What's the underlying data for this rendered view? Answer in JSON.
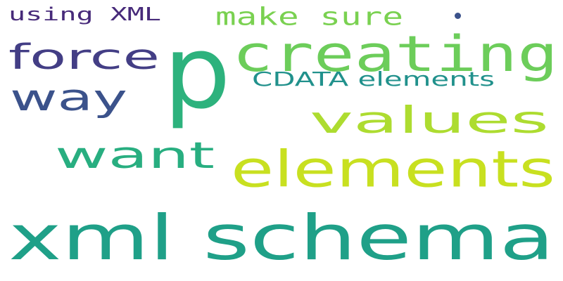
{
  "words": [
    {
      "id": "using-xml",
      "text": "using XML",
      "color": "#472a7a"
    },
    {
      "id": "make-sure",
      "text": "make sure",
      "color": "#7ad151"
    },
    {
      "id": "p",
      "text": "p",
      "color": "#2db27d"
    },
    {
      "id": "creating",
      "text": "creating",
      "color": "#6ccd5a"
    },
    {
      "id": "force",
      "text": "force",
      "color": "#433e85"
    },
    {
      "id": "cdata-elements",
      "text": "CDATA elements",
      "color": "#21918c"
    },
    {
      "id": "way",
      "text": "way",
      "color": "#3b528b"
    },
    {
      "id": "values",
      "text": "values",
      "color": "#addc30"
    },
    {
      "id": "want",
      "text": "want",
      "color": "#28ae80"
    },
    {
      "id": "elements",
      "text": "elements",
      "color": "#c8e020"
    },
    {
      "id": "xml-schema",
      "text": "xml schema",
      "color": "#1fa088"
    }
  ],
  "dot_color": "#3b528b"
}
